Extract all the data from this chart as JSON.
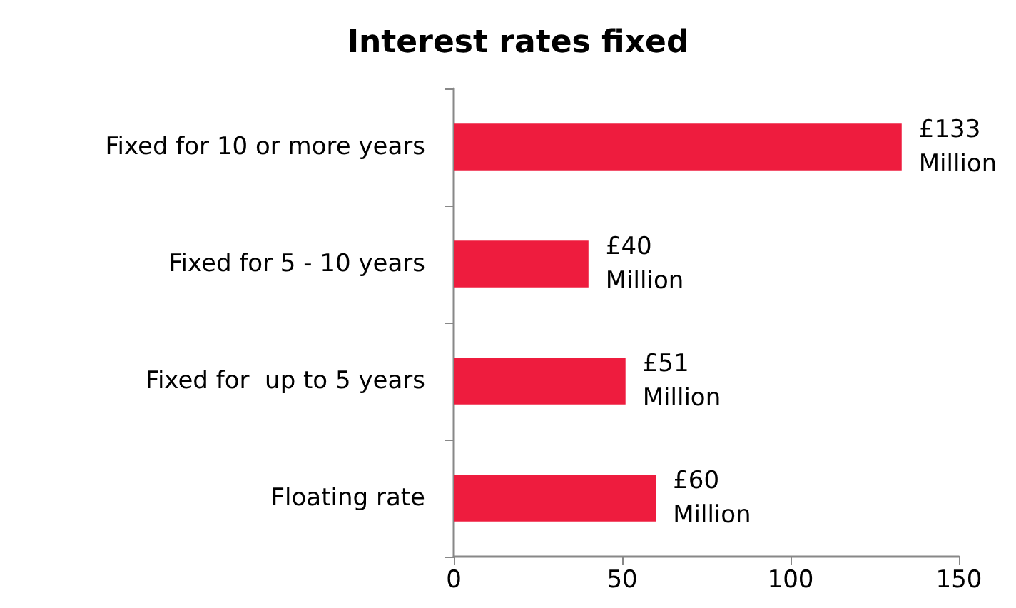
{
  "chart_data": {
    "type": "bar",
    "orientation": "horizontal",
    "title": "Interest rates fixed",
    "categories": [
      "Fixed for 10 or more years",
      "Fixed for 5 - 10 years",
      "Fixed for  up to 5 years",
      "Floating rate"
    ],
    "values": [
      133,
      40,
      51,
      60
    ],
    "color": "#ee1c3e",
    "value_labels": [
      "£133 Million",
      "£40 Million",
      "£51 Million",
      "£60 Million"
    ],
    "xlim": [
      0,
      150
    ],
    "xticks": [
      0,
      50,
      100,
      150
    ],
    "grid": false
  }
}
